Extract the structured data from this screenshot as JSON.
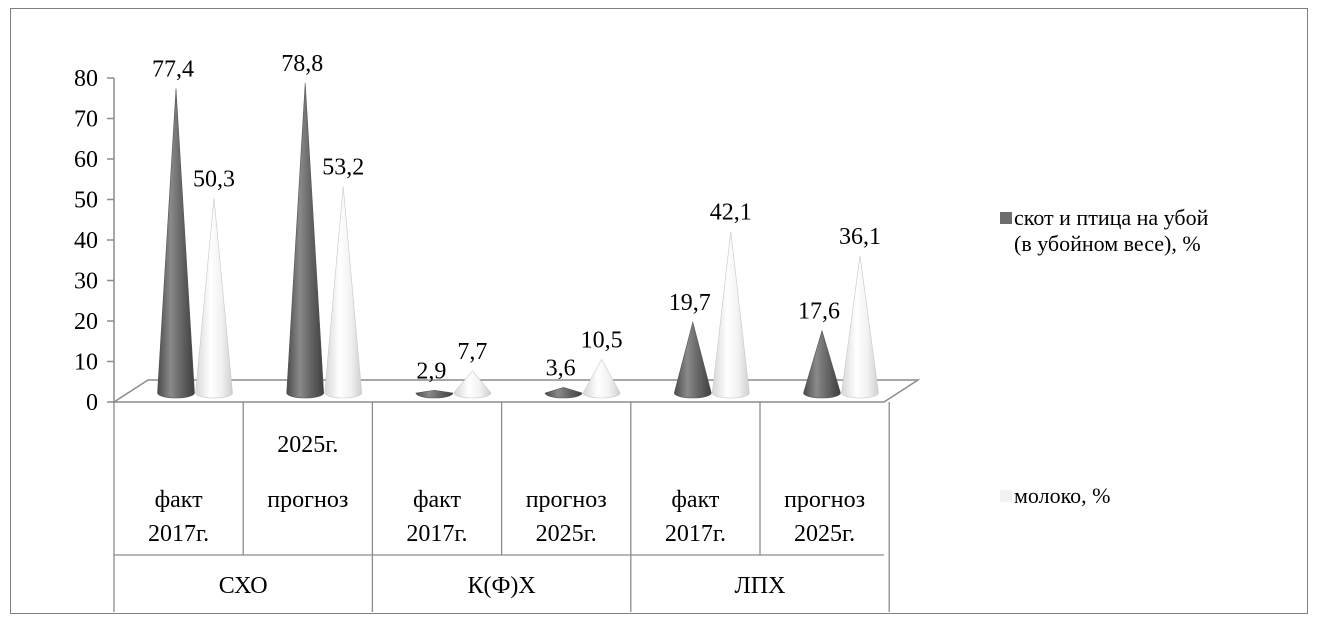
{
  "chart_data": {
    "type": "bar",
    "title": "",
    "xlabel": "",
    "ylabel": "",
    "ylim": [
      0,
      80
    ],
    "yticks": [
      "0",
      "10",
      "20",
      "30",
      "40",
      "50",
      "60",
      "70",
      "80"
    ],
    "groups": [
      {
        "label": "СХО",
        "categories": [
          {
            "label": [
              "факт",
              "2017г."
            ],
            "values": [
              77.4,
              50.3
            ],
            "value_labels": [
              "77,4",
              "50,3"
            ]
          },
          {
            "label": [
              "2025г.",
              "прогноз"
            ],
            "values": [
              78.8,
              53.2
            ],
            "value_labels": [
              "78,8",
              "53,2"
            ]
          }
        ]
      },
      {
        "label": "К(Ф)Х",
        "categories": [
          {
            "label": [
              "факт",
              "2017г."
            ],
            "values": [
              2.9,
              7.7
            ],
            "value_labels": [
              "2,9",
              "7,7"
            ]
          },
          {
            "label": [
              "прогноз",
              "2025г."
            ],
            "values": [
              3.6,
              10.5
            ],
            "value_labels": [
              "3,6",
              "10,5"
            ]
          }
        ]
      },
      {
        "label": "ЛПХ",
        "categories": [
          {
            "label": [
              "факт",
              "2017г."
            ],
            "values": [
              19.7,
              42.1
            ],
            "value_labels": [
              "19,7",
              "42,1"
            ]
          },
          {
            "label": [
              "прогноз",
              "2025г."
            ],
            "values": [
              17.6,
              36.1
            ],
            "value_labels": [
              "17,6",
              "36,1"
            ]
          }
        ]
      }
    ],
    "series": [
      {
        "name": [
          "скот и птица на убой",
          "(в убойном весе), %"
        ],
        "color": "#6d6d6d"
      },
      {
        "name": [
          "молоко, %"
        ],
        "color": "#f2f2f2"
      }
    ],
    "legend": "right",
    "grid": false
  }
}
